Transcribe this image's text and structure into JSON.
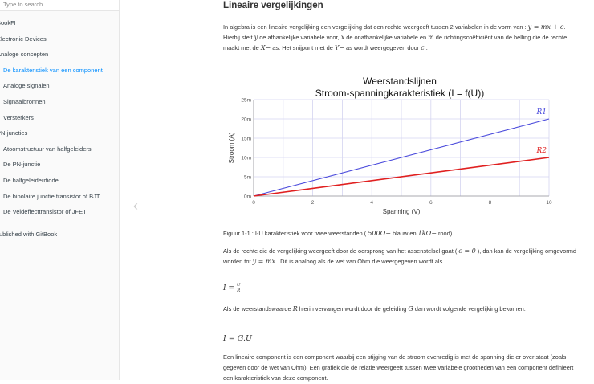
{
  "sidebar": {
    "search_placeholder": "Type to search",
    "items": [
      {
        "label": "BookFI",
        "level": 1
      },
      {
        "label": "Electronic Devices",
        "level": 1
      },
      {
        "label": "Analoge concepten",
        "level": 1
      },
      {
        "label": "De karakteristiek van een component",
        "level": 2,
        "active": true
      },
      {
        "label": "Analoge signalen",
        "level": 2
      },
      {
        "label": "Signaalbronnen",
        "level": 2
      },
      {
        "label": "Versterkers",
        "level": 2
      },
      {
        "label": "PN-juncties",
        "level": 1
      },
      {
        "label": "Atoomstructuur van halfgeleiders",
        "level": 2
      },
      {
        "label": "De PN-junctie",
        "level": 2
      },
      {
        "label": "De halfgeleiderdiode",
        "level": 2
      },
      {
        "label": "De bipolaire junctie transistor of BJT",
        "level": 2
      },
      {
        "label": "De Veldeffecttransistor of JFET",
        "level": 2
      }
    ],
    "published": "Published with GitBook",
    "accent": "#008cff"
  },
  "nav": {
    "back_icon": "chevron-left-icon"
  },
  "main": {
    "title": "Lineaire vergelijkingen",
    "p1": [
      "In algebra is een lineaire vergelijking een vergelijking dat een rechte weergeeft tussen 2 variabelen in de vorm van : ",
      "y = mx + c",
      ". Hierbij stelt ",
      "y",
      " de afhankelijke variabele voor, ",
      "x",
      " de onafhankelijke variabele en ",
      "m",
      " de richtingscoëfficiënt van de helling die de rechte maakt met de ",
      "X−",
      " as. Het snijpunt met de ",
      "Y−",
      " as wordt weergegeven door ",
      "c",
      " ."
    ],
    "caption": [
      "Figuur 1-1 : I-U karakteristiek voor twee weerstanden ( ",
      "500Ω−",
      " blauw en ",
      "1kΩ−",
      " rood)"
    ],
    "p2": [
      "Als de rechte die de vergelijking weergeeft door de oorsprong van het assenstelsel gaat ( ",
      "c = 0",
      " ), dan kan de vergelijking omgevormd worden tot ",
      "y = mx",
      " . Dit is analoog als de wet van Ohm die weergegeven wordt als :"
    ],
    "eq1": {
      "lhs": "I =",
      "num": "U",
      "den": "R"
    },
    "p3": [
      "Als de weerstandswaarde ",
      "R",
      " hierin vervangen wordt door de geleiding ",
      "G",
      " dan wordt volgende vergelijking bekomen:"
    ],
    "eq2": "I = G.U",
    "p4": "Een lineaire component is een component waarbij een stijging van de stroom evenredig is met de spanning die er over staat (zoals gegeven door de wet van Ohm). Een grafiek die de relatie weergeeft tussen twee variabele grootheden van een component definieert een karakteristiek van deze component."
  },
  "chart_data": {
    "type": "line",
    "title": "Weerstandslijnen",
    "subtitle": "Stroom-spanningkarakteristiek  (I = f(U))",
    "xlabel": "Spanning (V)",
    "ylabel": "Stroom (A)",
    "xlim": [
      0,
      10
    ],
    "ylim": [
      0,
      0.025
    ],
    "xticks": [
      0,
      2,
      4,
      6,
      8,
      10
    ],
    "yticks": [
      {
        "v": 0,
        "label": "0m"
      },
      {
        "v": 0.005,
        "label": "5m"
      },
      {
        "v": 0.01,
        "label": "10m"
      },
      {
        "v": 0.015,
        "label": "15m"
      },
      {
        "v": 0.02,
        "label": "20m"
      },
      {
        "v": 0.025,
        "label": "25m"
      }
    ],
    "grid": true,
    "series": [
      {
        "name": "R1",
        "x": [
          0,
          10
        ],
        "y": [
          0,
          0.02
        ],
        "color": "#4b4bdc"
      },
      {
        "name": "R2",
        "x": [
          0,
          10
        ],
        "y": [
          0,
          0.01
        ],
        "color": "#e02020"
      }
    ]
  }
}
